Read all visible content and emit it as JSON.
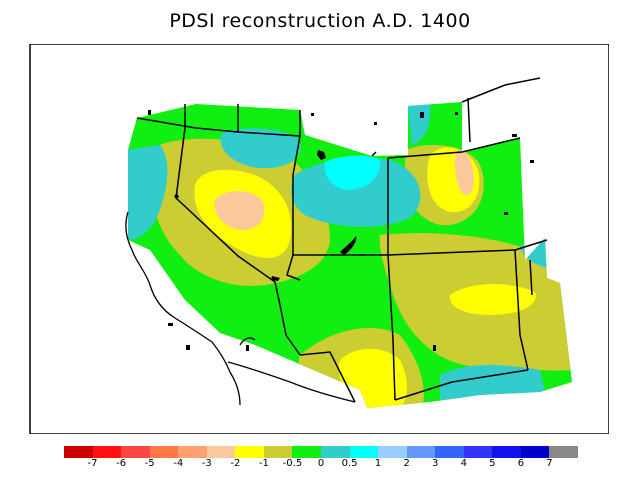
{
  "title": "PDSI reconstruction A.D. 1400",
  "colors": {
    "orange_pale": "#fbc89b",
    "yellow": "#ffff00",
    "olive": "#cccc33",
    "green": "#11ee11",
    "teal": "#33cccc",
    "cyan": "#00ffff",
    "white": "#ffffff",
    "line": "#000000"
  },
  "legend": {
    "bins": [
      {
        "color": "#cc0000"
      },
      {
        "color": "#ff1111"
      },
      {
        "color": "#ff4444"
      },
      {
        "color": "#ff7744"
      },
      {
        "color": "#ffa070"
      },
      {
        "color": "#fbc89b"
      },
      {
        "color": "#ffff00"
      },
      {
        "color": "#cccc33"
      },
      {
        "color": "#11ee11"
      },
      {
        "color": "#33cccc"
      },
      {
        "color": "#00ffff"
      },
      {
        "color": "#99ccff"
      },
      {
        "color": "#6699ff"
      },
      {
        "color": "#3366ff"
      },
      {
        "color": "#3333ff"
      },
      {
        "color": "#1111ee"
      },
      {
        "color": "#0000cc"
      },
      {
        "color": "#888888"
      }
    ],
    "labels": [
      "-7",
      "-6",
      "-5",
      "-4",
      "-3",
      "-2",
      "-1",
      "-0.5",
      "0",
      "0.5",
      "1",
      "2",
      "3",
      "4",
      "5",
      "6",
      "7"
    ]
  }
}
